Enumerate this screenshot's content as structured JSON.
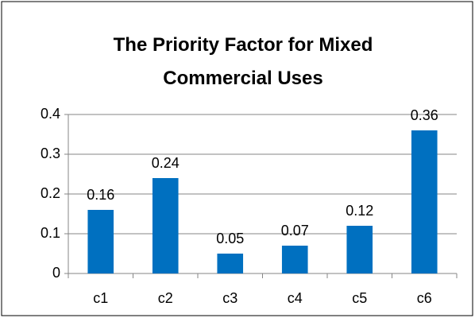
{
  "chart_data": {
    "type": "bar",
    "title": "The Priority Factor for Mixed Commercial Uses",
    "categories": [
      "c1",
      "c2",
      "c3",
      "c4",
      "c5",
      "c6"
    ],
    "values": [
      0.16,
      0.24,
      0.05,
      0.07,
      0.12,
      0.36
    ],
    "color": "#0070c0",
    "ylim": [
      0,
      0.4
    ],
    "yticks": [
      0,
      0.1,
      0.2,
      0.3,
      0.4
    ],
    "grid": true
  }
}
